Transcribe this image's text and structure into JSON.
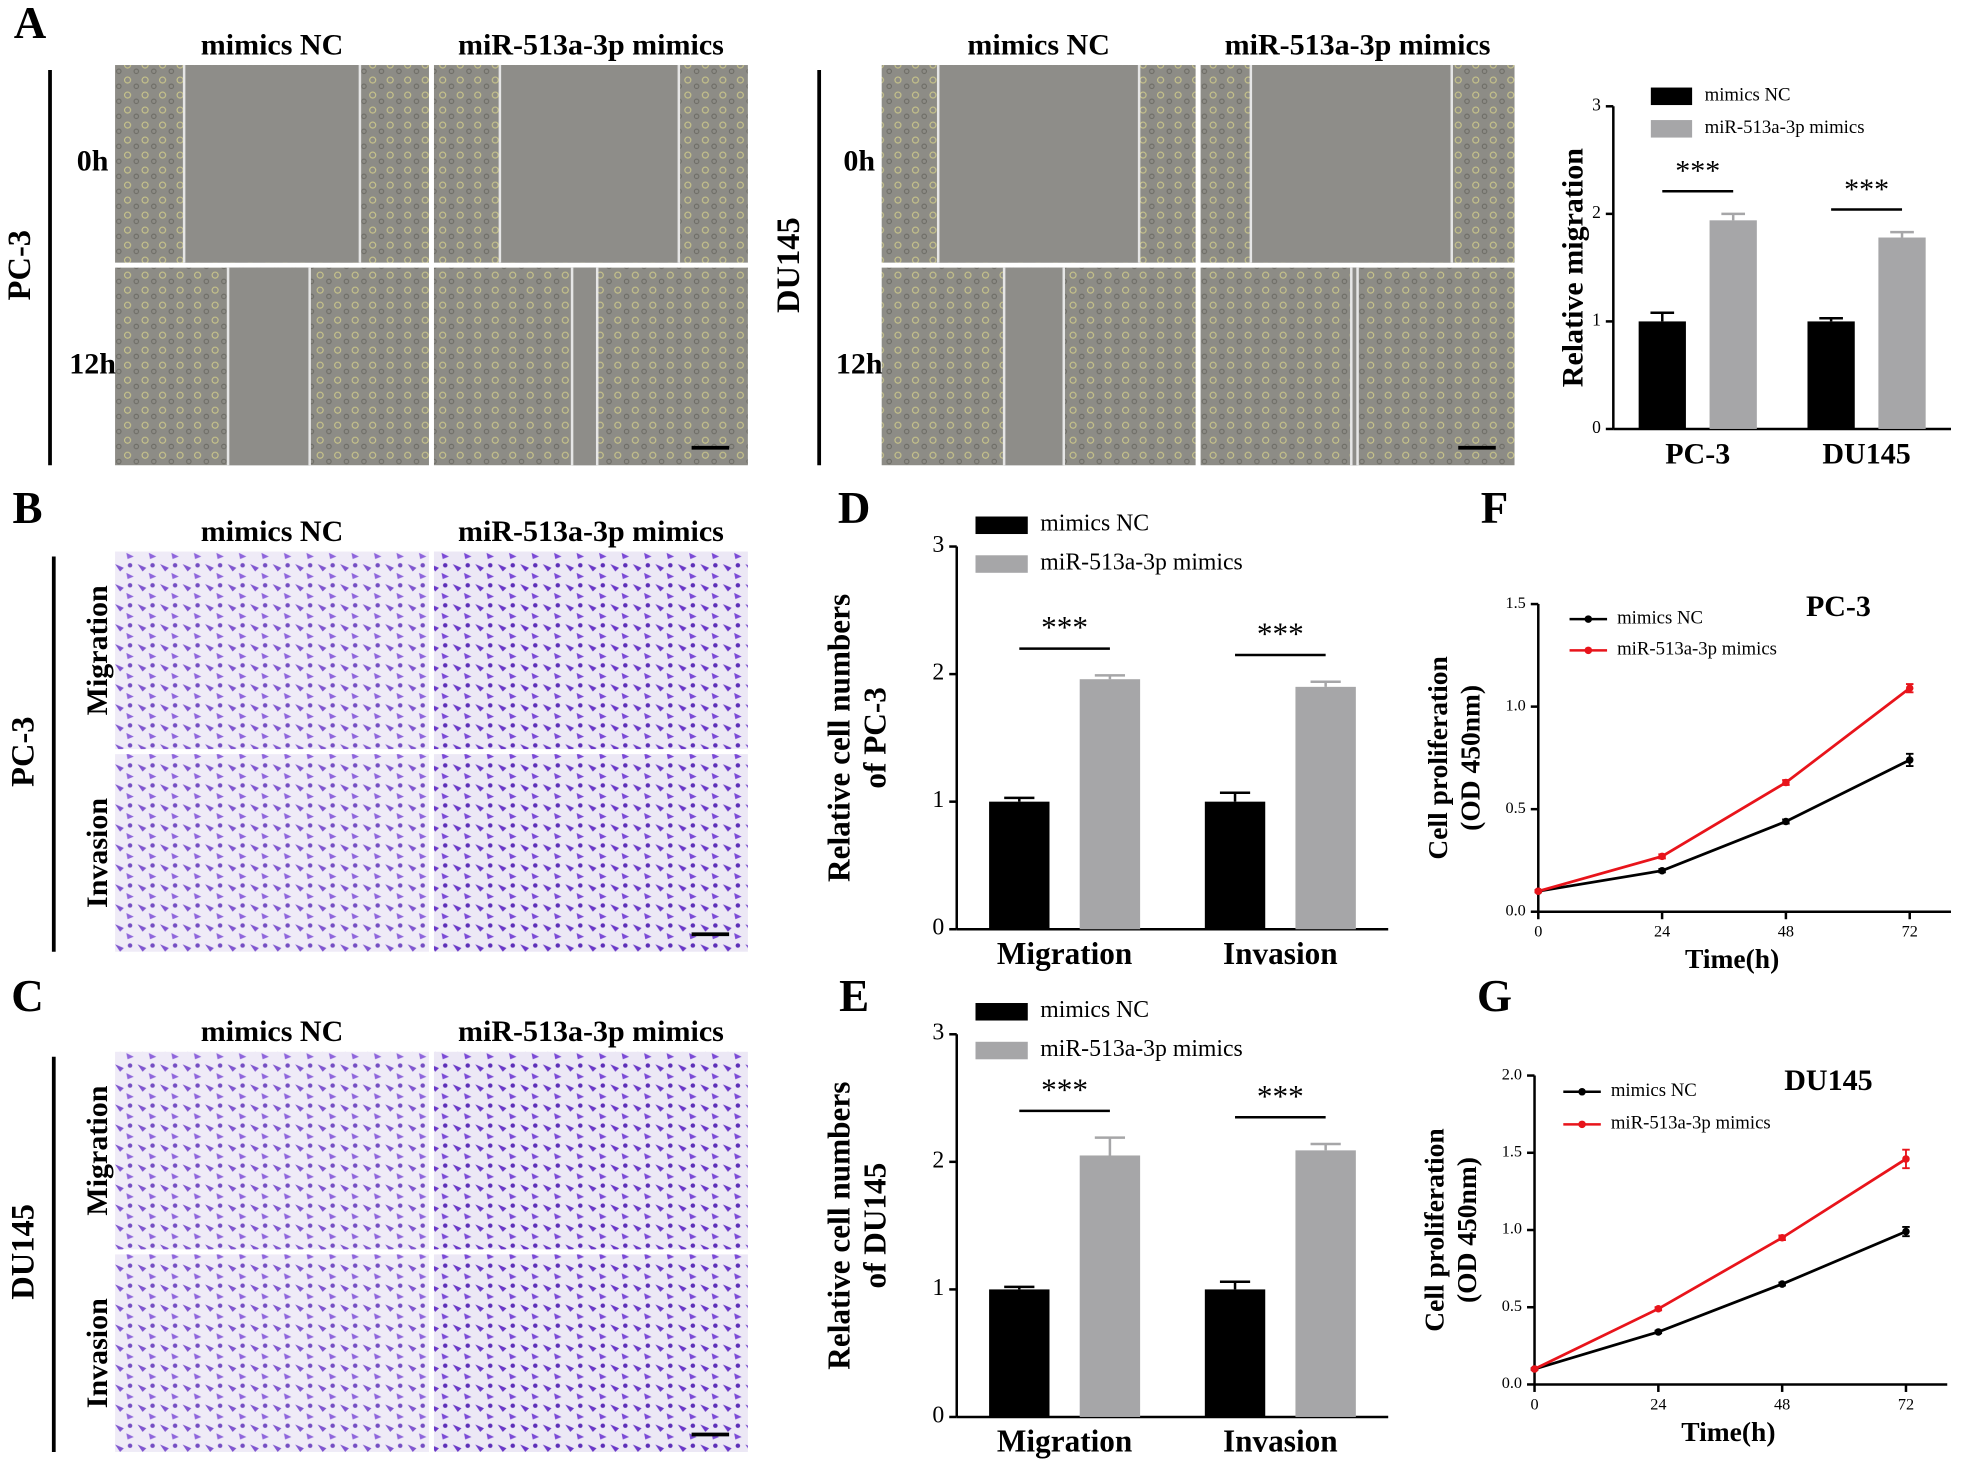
{
  "panel_labels": [
    "A",
    "B",
    "C",
    "D",
    "E",
    "F",
    "G"
  ],
  "images": [
    {
      "cell_line": "PC-3",
      "columns": [
        "mimics NC",
        "miR-513a-3p mimics"
      ],
      "rows": [
        "0h",
        "12h"
      ]
    },
    {
      "cell_line": "DU145",
      "columns": [
        "mimics NC",
        "miR-513a-3p mimics"
      ],
      "rows": [
        "0h",
        "12h"
      ]
    },
    {
      "cell_line": "PC-3",
      "columns": [
        "mimics NC",
        "miR-513a-3p mimics"
      ],
      "rows": [
        "Migration",
        "Invasion"
      ]
    },
    {
      "cell_line": "DU145",
      "columns": [
        "mimics NC",
        "miR-513a-3p mimics"
      ],
      "rows": [
        "Migration",
        "Invasion"
      ]
    }
  ],
  "chart_data": [
    {
      "type": "bar",
      "y_label": [
        "Relative migration"
      ],
      "categories": [
        "PC-3",
        "DU145"
      ],
      "series": [
        {
          "name": "mimics NC",
          "color": "#000000",
          "values": [
            1.0,
            1.0
          ],
          "errors": [
            0.08,
            0.03
          ]
        },
        {
          "name": "miR-513a-3p mimics",
          "color": "#a6a6a8",
          "values": [
            1.94,
            1.78
          ],
          "errors": [
            0.06,
            0.05
          ]
        }
      ],
      "significance": [
        "***",
        "***"
      ],
      "ylim": [
        0,
        3
      ],
      "yticks": [
        0,
        1,
        2,
        3
      ],
      "legend": "top-left"
    },
    {
      "type": "bar",
      "y_label": [
        "Relative cell numbers",
        "of PC-3"
      ],
      "categories": [
        "Migration",
        "Invasion"
      ],
      "series": [
        {
          "name": "mimics NC",
          "color": "#000000",
          "values": [
            1.0,
            1.0
          ],
          "errors": [
            0.03,
            0.07
          ]
        },
        {
          "name": "miR-513a-3p mimics",
          "color": "#a6a6a8",
          "values": [
            1.96,
            1.9
          ],
          "errors": [
            0.03,
            0.04
          ]
        }
      ],
      "significance": [
        "***",
        "***"
      ],
      "ylim": [
        0,
        3
      ],
      "yticks": [
        0,
        1,
        2,
        3
      ],
      "legend": "top-left"
    },
    {
      "type": "bar",
      "y_label": [
        "Relative cell numbers",
        "of DU145"
      ],
      "categories": [
        "Migration",
        "Invasion"
      ],
      "series": [
        {
          "name": "mimics NC",
          "color": "#000000",
          "values": [
            1.0,
            1.0
          ],
          "errors": [
            0.02,
            0.06
          ]
        },
        {
          "name": "miR-513a-3p mimics",
          "color": "#a6a6a8",
          "values": [
            2.05,
            2.09
          ],
          "errors": [
            0.14,
            0.05
          ]
        }
      ],
      "significance": [
        "***",
        "***"
      ],
      "ylim": [
        0,
        3
      ],
      "yticks": [
        0,
        1,
        2,
        3
      ],
      "legend": "top-left"
    },
    {
      "type": "line",
      "title": "PC-3",
      "x_label": "Time(h)",
      "y_label": [
        "Cell proliferation",
        "(OD 450nm)"
      ],
      "x": [
        0,
        24,
        48,
        72
      ],
      "series": [
        {
          "name": "mimics NC",
          "color": "#000000",
          "values": [
            0.1,
            0.2,
            0.44,
            0.74
          ],
          "errors": [
            0.005,
            0.008,
            0.01,
            0.03
          ]
        },
        {
          "name": "miR-513a-3p mimics",
          "color": "#e8141b",
          "values": [
            0.1,
            0.27,
            0.63,
            1.09
          ],
          "errors": [
            0.005,
            0.01,
            0.012,
            0.02
          ]
        }
      ],
      "xlim": [
        0,
        80
      ],
      "xticks": [
        0,
        24,
        48,
        72
      ],
      "ylim": [
        0,
        1.5
      ],
      "yticks": [
        {
          "value": 0,
          "label": "0.0"
        },
        {
          "value": 0.5,
          "label": "0.5"
        },
        {
          "value": 1,
          "label": "1.0"
        },
        {
          "value": 1.5,
          "label": "1.5"
        }
      ],
      "legend": "top-left"
    },
    {
      "type": "line",
      "title": "DU145",
      "x_label": "Time(h)",
      "y_label": [
        "Cell proliferation",
        "(OD 450nm)"
      ],
      "x": [
        0,
        24,
        48,
        72
      ],
      "series": [
        {
          "name": "mimics NC",
          "color": "#000000",
          "values": [
            0.1,
            0.34,
            0.65,
            0.99
          ],
          "errors": [
            0.005,
            0.008,
            0.01,
            0.03
          ]
        },
        {
          "name": "miR-513a-3p mimics",
          "color": "#e8141b",
          "values": [
            0.1,
            0.49,
            0.95,
            1.46
          ],
          "errors": [
            0.005,
            0.01,
            0.015,
            0.06
          ]
        }
      ],
      "xlim": [
        0,
        80
      ],
      "xticks": [
        0,
        24,
        48,
        72
      ],
      "ylim": [
        0,
        2
      ],
      "yticks": [
        {
          "value": 0,
          "label": "0.0"
        },
        {
          "value": 0.5,
          "label": "0.5"
        },
        {
          "value": 1,
          "label": "1.0"
        },
        {
          "value": 1.5,
          "label": "1.5"
        },
        {
          "value": 2,
          "label": "2.0"
        }
      ],
      "legend": "top-left"
    }
  ]
}
